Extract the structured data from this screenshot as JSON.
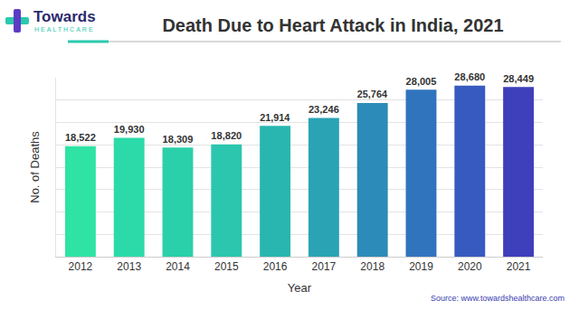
{
  "chart_data": {
    "type": "bar",
    "title": "Death Due to Heart Attack in India, 2021",
    "logo": "Towards",
    "logo_subtitle": "HEALTHCARE",
    "source": "Source: www.towardshealthcare.com",
    "x_label": "Year",
    "y_label": "No. of Deaths",
    "categories": [
      "2012",
      "2013",
      "2014",
      "2015",
      "2016",
      "2017",
      "2018",
      "2019",
      "2020",
      "2021"
    ],
    "values": [
      18522,
      19930,
      18309,
      18820,
      21914,
      23246,
      25764,
      28005,
      28680,
      28449
    ],
    "value_labels": [
      "18,522",
      "19,930",
      "18,309",
      "18,820",
      "21,914",
      "23,246",
      "25,764",
      "28,005",
      "28,680",
      "28,449"
    ],
    "colors": [
      "#2ee3a4",
      "#2bdaa8",
      "#2ad0aa",
      "#2bc6ad",
      "#29b6b0",
      "#2aa3b5",
      "#2c8bb8",
      "#3174be",
      "#375ac0",
      "#3e3fba"
    ],
    "ylim": [
      0,
      30000
    ],
    "yticks": [
      0,
      3750,
      7500,
      11250,
      15000,
      18750,
      22500,
      26250,
      30000
    ],
    "grid": true,
    "data_labels": true,
    "tick_labels": "x"
  }
}
